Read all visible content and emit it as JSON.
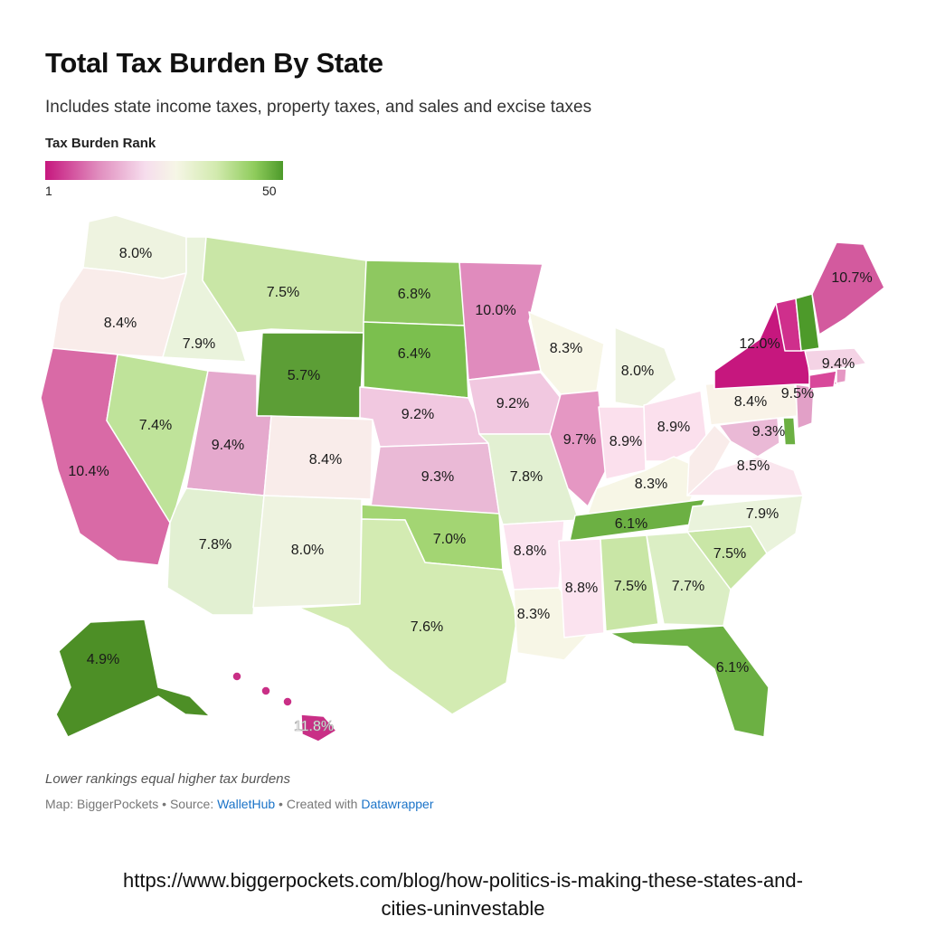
{
  "title": "Total Tax Burden By State",
  "subtitle": "Includes state income taxes, property taxes, and sales and excise taxes",
  "legend": {
    "title": "Tax Burden Rank",
    "min_label": "1",
    "max_label": "50",
    "colors": [
      "#c6177e",
      "#e08bbd",
      "#f6dded",
      "#f6f6e6",
      "#d2eaae",
      "#8fcc5c",
      "#4d9a2a"
    ]
  },
  "footer": {
    "note": "Lower rankings equal higher tax burdens",
    "credit_prefix": "Map: BiggerPockets • Source: ",
    "source_link": "WalletHub",
    "created_prefix": " • Created with ",
    "created_link": "Datawrapper"
  },
  "url_line1": "https://www.biggerpockets.com/blog/how-politics-is-making-these-states-and-",
  "url_line2": "cities-uninvestable",
  "states": [
    {
      "name": "Washington",
      "value": "8.0%",
      "color": "#eef3e0"
    },
    {
      "name": "Oregon",
      "value": "8.4%",
      "color": "#f9ecea"
    },
    {
      "name": "California",
      "value": "10.4%",
      "color": "#d96aa6"
    },
    {
      "name": "Idaho",
      "value": "7.9%",
      "color": "#eaf3dc"
    },
    {
      "name": "Nevada",
      "value": "7.4%",
      "color": "#bfe39a"
    },
    {
      "name": "Montana",
      "value": "7.5%",
      "color": "#c9e6a6"
    },
    {
      "name": "Wyoming",
      "value": "5.7%",
      "color": "#5c9e36"
    },
    {
      "name": "Utah",
      "value": "9.4%",
      "color": "#e5a9cd"
    },
    {
      "name": "Arizona",
      "value": "7.8%",
      "color": "#e2f0d2"
    },
    {
      "name": "Colorado",
      "value": "8.4%",
      "color": "#f9ecea"
    },
    {
      "name": "New Mexico",
      "value": "8.0%",
      "color": "#eef3e0"
    },
    {
      "name": "North Dakota",
      "value": "6.8%",
      "color": "#8ec860"
    },
    {
      "name": "South Dakota",
      "value": "6.4%",
      "color": "#7bbf4e"
    },
    {
      "name": "Nebraska",
      "value": "9.2%",
      "color": "#f1c8e0"
    },
    {
      "name": "Kansas",
      "value": "9.3%",
      "color": "#eab9d6"
    },
    {
      "name": "Oklahoma",
      "value": "7.0%",
      "color": "#a3d573"
    },
    {
      "name": "Texas",
      "value": "7.6%",
      "color": "#d3ebb2"
    },
    {
      "name": "Minnesota",
      "value": "10.0%",
      "color": "#e08bbd"
    },
    {
      "name": "Iowa",
      "value": "9.2%",
      "color": "#f1c8e0"
    },
    {
      "name": "Missouri",
      "value": "7.8%",
      "color": "#e2f0d2"
    },
    {
      "name": "Arkansas",
      "value": "8.8%",
      "color": "#fbe3ef"
    },
    {
      "name": "Louisiana",
      "value": "8.3%",
      "color": "#f7f6e6"
    },
    {
      "name": "Wisconsin",
      "value": "8.3%",
      "color": "#f7f6e6"
    },
    {
      "name": "Illinois",
      "value": "9.7%",
      "color": "#e597c3"
    },
    {
      "name": "Michigan",
      "value": "8.0%",
      "color": "#eef3e0"
    },
    {
      "name": "Indiana",
      "value": "8.9%",
      "color": "#fbe0ed"
    },
    {
      "name": "Ohio",
      "value": "8.9%",
      "color": "#fbe0ed"
    },
    {
      "name": "Kentucky",
      "value": "8.3%",
      "color": "#f7f6e6"
    },
    {
      "name": "Tennessee",
      "value": "6.1%",
      "color": "#6cb043"
    },
    {
      "name": "Mississippi",
      "value": "8.8%",
      "color": "#fbe3ef"
    },
    {
      "name": "Alabama",
      "value": "7.5%",
      "color": "#c9e6a6"
    },
    {
      "name": "Georgia",
      "value": "7.7%",
      "color": "#dbeec4"
    },
    {
      "name": "Florida",
      "value": "6.1%",
      "color": "#6cb043"
    },
    {
      "name": "South Carolina",
      "value": "7.5%",
      "color": "#c9e6a6"
    },
    {
      "name": "North Carolina",
      "value": "7.9%",
      "color": "#eaf3dc"
    },
    {
      "name": "Virginia",
      "value": "8.5%",
      "color": "#fae6ee"
    },
    {
      "name": "West Virginia",
      "value": "",
      "color": "#f9ecea"
    },
    {
      "name": "Maryland",
      "value": "9.3%",
      "color": "#eab9d6"
    },
    {
      "name": "Delaware",
      "value": "",
      "color": "#6cb043"
    },
    {
      "name": "Pennsylvania",
      "value": "8.4%",
      "color": "#f9f3e8"
    },
    {
      "name": "New Jersey",
      "value": "9.5%",
      "color": "#e2a0c7"
    },
    {
      "name": "New York",
      "value": "12.0%",
      "color": "#c6177e"
    },
    {
      "name": "Connecticut",
      "value": "",
      "color": "#d8489a"
    },
    {
      "name": "Rhode Island",
      "value": "",
      "color": "#e597c3"
    },
    {
      "name": "Massachusetts",
      "value": "9.4%",
      "color": "#f4d3e5"
    },
    {
      "name": "Vermont",
      "value": "",
      "color": "#cf2f8c"
    },
    {
      "name": "New Hampshire",
      "value": "",
      "color": "#4d9a2a"
    },
    {
      "name": "Maine",
      "value": "10.7%",
      "color": "#d35a9e"
    },
    {
      "name": "Alaska",
      "value": "4.9%",
      "color": "#4d8f26"
    },
    {
      "name": "Hawaii",
      "value": "11.8%",
      "color": "#c92f86"
    }
  ]
}
